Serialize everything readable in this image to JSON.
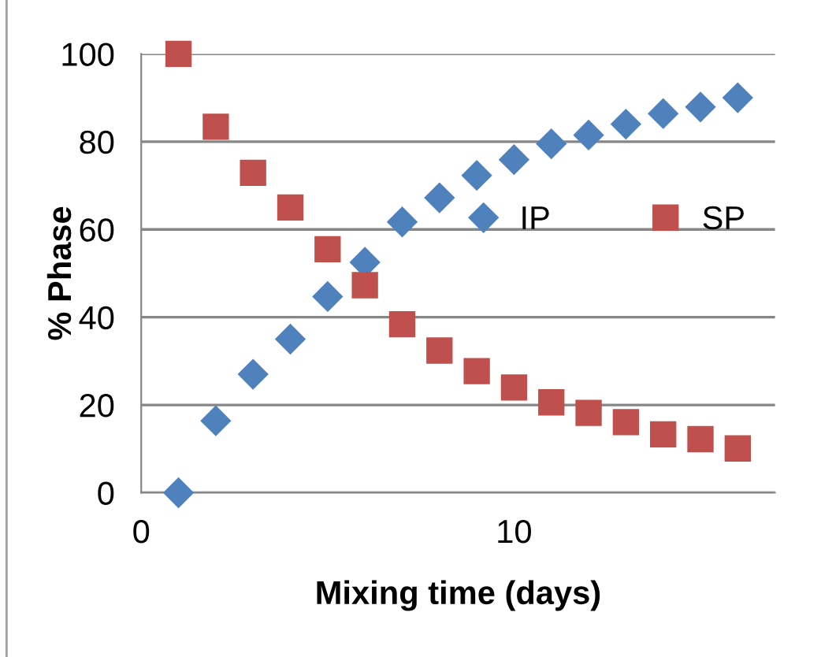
{
  "chart_data": {
    "type": "scatter",
    "xlabel": "Mixing time (days)",
    "ylabel": "% Phase",
    "x": [
      1,
      2,
      3,
      4,
      5,
      6,
      7,
      8,
      9,
      10,
      11,
      12,
      13,
      14,
      15,
      16
    ],
    "series": [
      {
        "name": "IP",
        "color": "#4f81bd",
        "marker": "diamond",
        "values": [
          0,
          16.4,
          27,
          35,
          44.7,
          52.5,
          61.7,
          67.2,
          72.3,
          75.9,
          79.5,
          81.5,
          84,
          86.4,
          87.9,
          90
        ]
      },
      {
        "name": "SP",
        "color": "#c0504d",
        "marker": "square",
        "values": [
          100,
          83.4,
          72.9,
          65,
          55.5,
          47.3,
          38.4,
          32.4,
          27.7,
          24,
          20.6,
          18.2,
          16.1,
          13.3,
          12.2,
          10.1
        ]
      }
    ],
    "xlim": [
      0,
      17
    ],
    "xticks": [
      0,
      10
    ],
    "ylim": [
      0,
      100
    ],
    "yticks": [
      0,
      20,
      40,
      60,
      80,
      100
    ],
    "grid": "y",
    "legend": "right"
  }
}
